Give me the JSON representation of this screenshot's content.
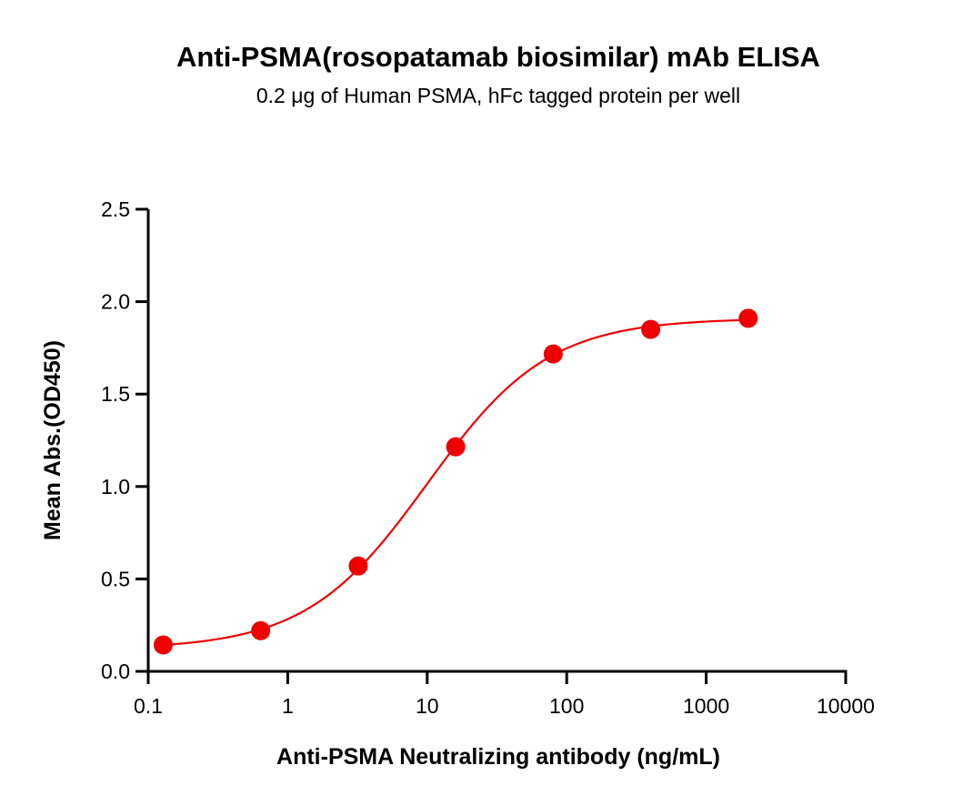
{
  "chart_data": {
    "type": "scatter",
    "title": "Anti-PSMA(rosopatamab biosimilar) mAb ELISA",
    "subtitle": "0.2 μg of Human PSMA, hFc tagged protein per well",
    "xlabel": "Anti-PSMA Neutralizing antibody (ng/mL)",
    "ylabel": "Mean Abs.(OD450)",
    "xscale": "log",
    "xlim": [
      0.1,
      10000
    ],
    "ylim": [
      0,
      2.5
    ],
    "xticks": [
      "0.1",
      "1",
      "10",
      "100",
      "1000",
      "10000"
    ],
    "yticks": [
      "0.0",
      "0.5",
      "1.0",
      "1.5",
      "2.0",
      "2.5"
    ],
    "grid": false,
    "color": "#ee0000",
    "series": [
      {
        "x": [
          0.128,
          0.64,
          3.2,
          16,
          80,
          400,
          2000
        ],
        "y": [
          0.143,
          0.22,
          0.57,
          1.215,
          1.717,
          1.85,
          1.91
        ]
      }
    ],
    "fit": {
      "model": "4PL",
      "bottom": 0.12,
      "top": 1.91,
      "ec50": 10,
      "hill": 1.0
    }
  }
}
